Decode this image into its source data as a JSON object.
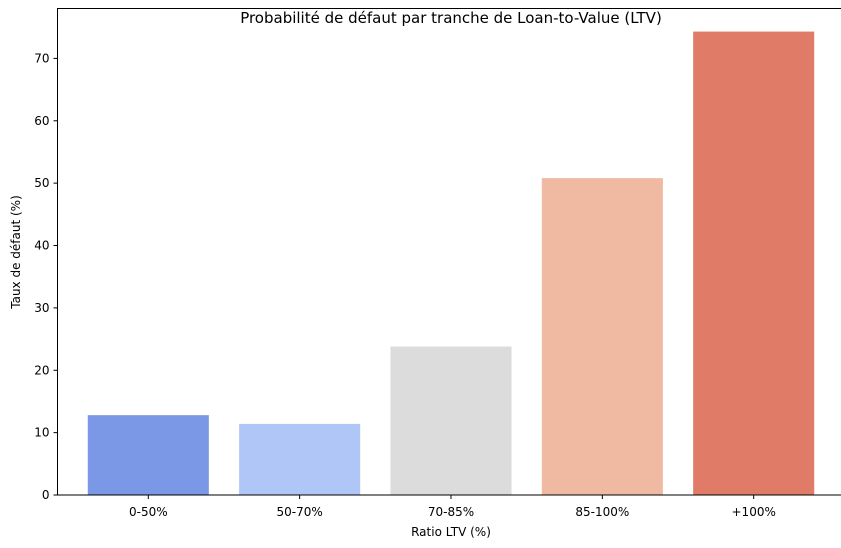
{
  "chart_data": {
    "type": "bar",
    "title": "Probabilité de défaut par tranche de Loan-to-Value (LTV)",
    "xlabel": "Ratio LTV (%)",
    "ylabel": "Taux de défaut (%)",
    "categories": [
      "0-50%",
      "50-70%",
      "70-85%",
      "85-100%",
      "+100%"
    ],
    "values": [
      12.8,
      11.4,
      23.8,
      50.8,
      74.3
    ],
    "colors": [
      "#7b98e6",
      "#afc6f6",
      "#dcdcdc",
      "#efbaa1",
      "#df7b66"
    ],
    "yticks": [
      0,
      10,
      20,
      30,
      40,
      50,
      60,
      70
    ],
    "ylim": [
      0,
      78
    ],
    "grid": false,
    "legend": "none"
  }
}
